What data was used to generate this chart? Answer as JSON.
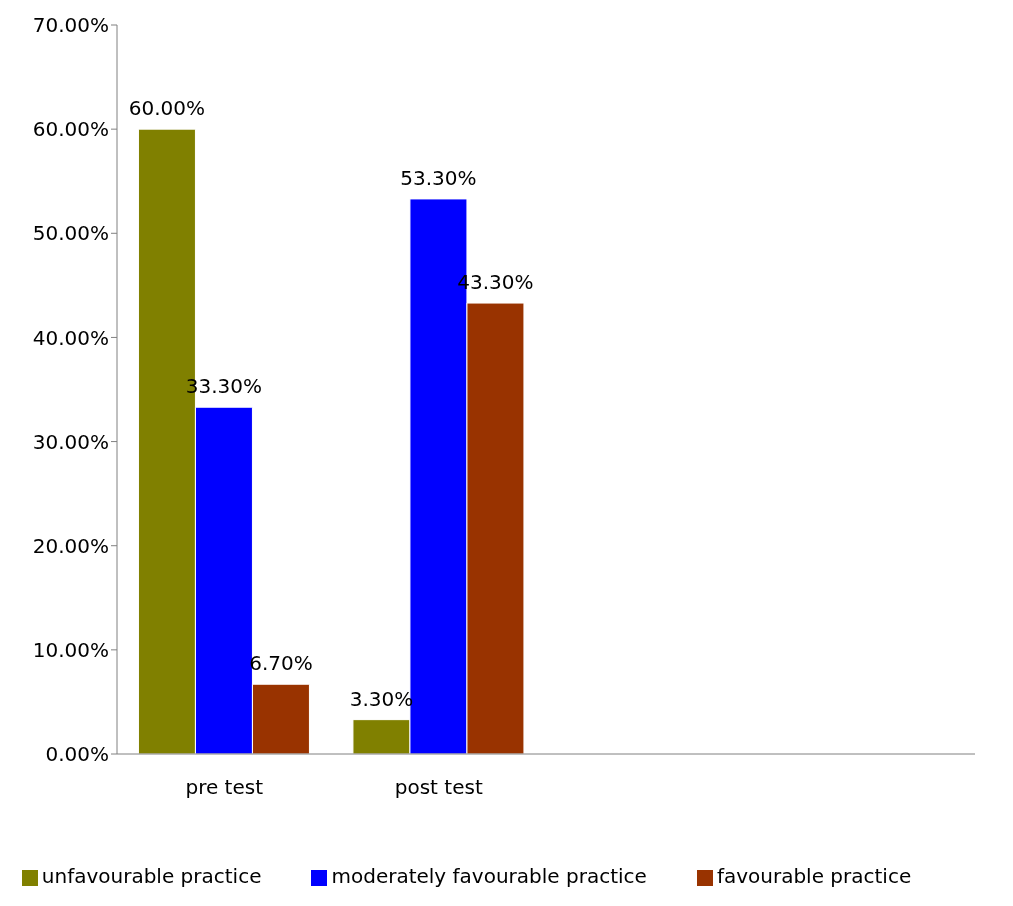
{
  "chart_data": {
    "type": "bar",
    "categories": [
      "pre test",
      "post test",
      null,
      null
    ],
    "series": [
      {
        "name": "unfavourable practice",
        "color": "#808000",
        "values": [
          60,
          3.3,
          null,
          null
        ],
        "value_labels": [
          "60.00%",
          "3.30%",
          null,
          null
        ]
      },
      {
        "name": "moderately favourable practice",
        "color": "#0000ff",
        "values": [
          33.3,
          53.3,
          null,
          null
        ],
        "value_labels": [
          "33.30%",
          "53.30%",
          null,
          null
        ]
      },
      {
        "name": "favourable practice",
        "color": "#993300",
        "values": [
          6.7,
          43.3,
          null,
          null
        ],
        "value_labels": [
          "6.70%",
          "43.30%",
          null,
          null
        ]
      }
    ],
    "ylim": [
      0,
      70
    ],
    "yticks": [
      {
        "value": 0,
        "label": "0.00%"
      },
      {
        "value": 10,
        "label": "10.00%"
      },
      {
        "value": 20,
        "label": "20.00%"
      },
      {
        "value": 30,
        "label": "30.00%"
      },
      {
        "value": 40,
        "label": "40.00%"
      },
      {
        "value": 50,
        "label": "50.00%"
      },
      {
        "value": 60,
        "label": "60.00%"
      },
      {
        "value": 70,
        "label": "70.00%"
      }
    ],
    "grid": false,
    "legend": "bottom"
  }
}
